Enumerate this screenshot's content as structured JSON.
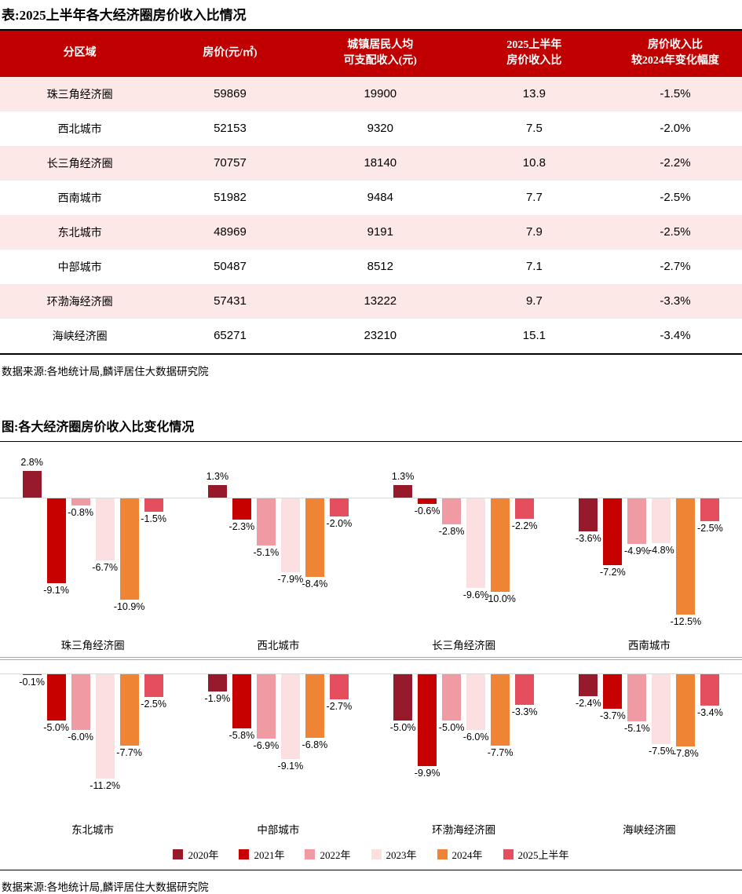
{
  "table": {
    "title": "表:2025上半年各大经济圈房价收入比情况",
    "columns": [
      "分区域",
      "房价(元/㎡)",
      "城镇居民人均\n可支配收入(元)",
      "2025上半年\n房价收入比",
      "房价收入比\n较2024年变化幅度"
    ],
    "rows": [
      [
        "珠三角经济圈",
        "59869",
        "19900",
        "13.9",
        "-1.5%"
      ],
      [
        "西北城市",
        "52153",
        "9320",
        "7.5",
        "-2.0%"
      ],
      [
        "长三角经济圈",
        "70757",
        "18140",
        "10.8",
        "-2.2%"
      ],
      [
        "西南城市",
        "51982",
        "9484",
        "7.7",
        "-2.5%"
      ],
      [
        "东北城市",
        "48969",
        "9191",
        "7.9",
        "-2.5%"
      ],
      [
        "中部城市",
        "50487",
        "8512",
        "7.1",
        "-2.7%"
      ],
      [
        "环渤海经济圈",
        "57431",
        "13222",
        "9.7",
        "-3.3%"
      ],
      [
        "海峡经济圈",
        "65271",
        "23210",
        "15.1",
        "-3.4%"
      ]
    ],
    "source": "数据来源:各地统计局,麟评居住大数据研究院"
  },
  "chart_data": {
    "type": "bar",
    "title": "图:各大经济圈房价收入比变化情况",
    "categories": [
      "珠三角经济圈",
      "西北城市",
      "长三角经济圈",
      "西南城市",
      "东北城市",
      "中部城市",
      "环渤海经济圈",
      "海峡经济圈"
    ],
    "series": [
      {
        "name": "2020年",
        "color": "#961A2B",
        "values": [
          2.8,
          1.3,
          1.3,
          -3.6,
          -0.1,
          -1.9,
          -5.0,
          -2.4
        ]
      },
      {
        "name": "2021年",
        "color": "#C70000",
        "values": [
          -9.1,
          -2.3,
          -0.6,
          -7.2,
          -5.0,
          -5.8,
          -9.9,
          -3.7
        ]
      },
      {
        "name": "2022年",
        "color": "#F09AA4",
        "values": [
          -0.8,
          -5.1,
          -2.8,
          -4.9,
          -6.0,
          -6.9,
          -5.0,
          -5.1
        ]
      },
      {
        "name": "2023年",
        "color": "#FCE0E1",
        "values": [
          -6.7,
          -7.9,
          -9.6,
          -4.8,
          -11.2,
          -9.1,
          -6.0,
          -7.5
        ]
      },
      {
        "name": "2024年",
        "color": "#EE8434",
        "values": [
          -10.9,
          -8.4,
          -10.0,
          -12.5,
          -7.7,
          -6.8,
          -7.7,
          -7.8
        ]
      },
      {
        "name": "2025上半年",
        "color": "#E44E5E",
        "values": [
          -1.5,
          -2.0,
          -2.2,
          -2.5,
          -2.5,
          -2.7,
          -3.3,
          -3.4
        ]
      }
    ],
    "value_suffix": "%",
    "ylim": [
      -13.5,
      3.5
    ],
    "layout": "2 rows x 4 category groups, grouped vertical bars, data labels on every bar",
    "grid": false,
    "legend_position": "bottom",
    "source": "数据来源:各地统计局,麟评居住大数据研究院"
  },
  "colors": {
    "header_red": "#C00000",
    "row_pink": "#FCE8E7",
    "zero_axis": "#D9D9D9"
  }
}
